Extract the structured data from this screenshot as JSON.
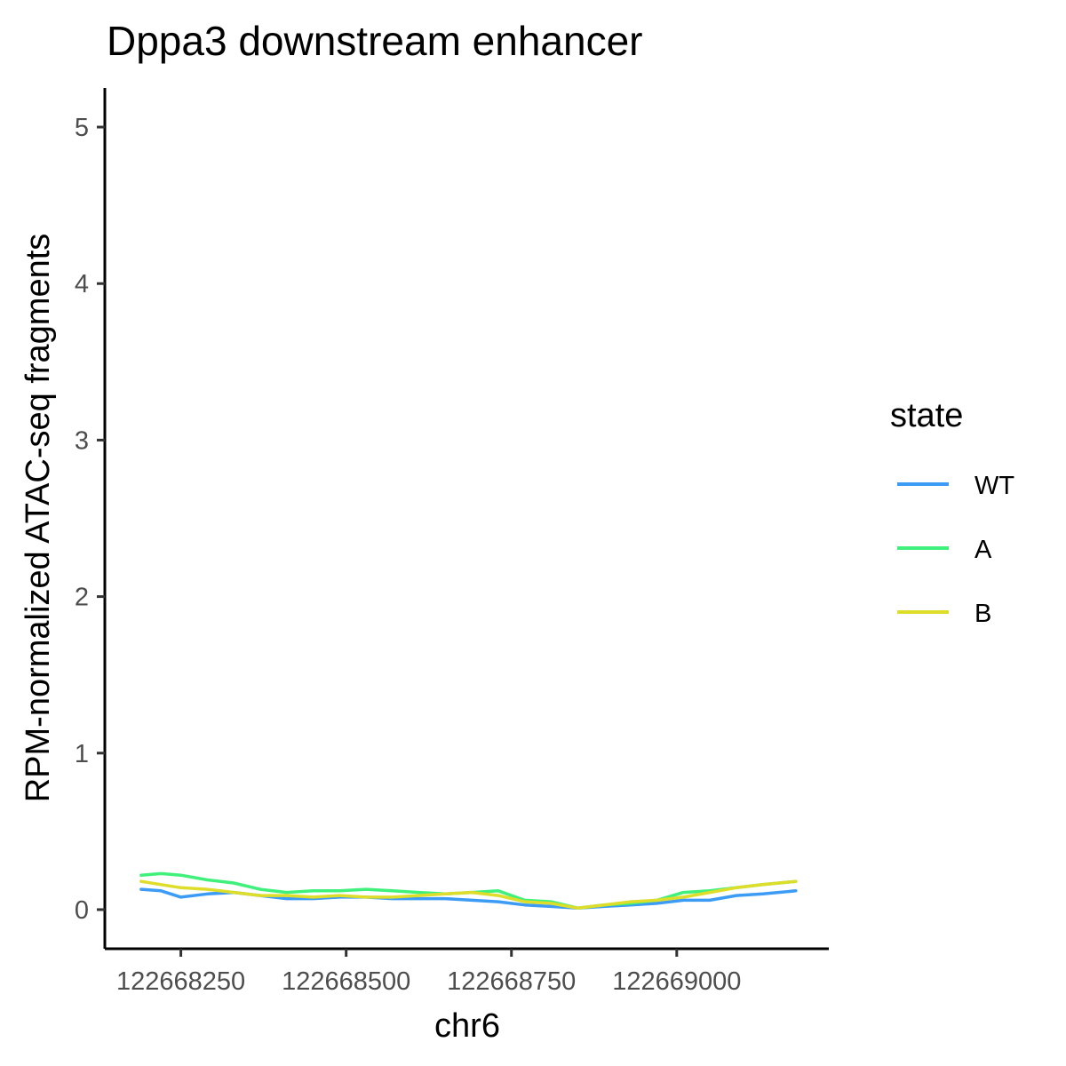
{
  "chart_data": {
    "type": "line",
    "title": "Dppa3 downstream enhancer",
    "xlabel": "chr6",
    "ylabel": "RPM-normalized ATAC-seq fragments",
    "xlim": [
      122668135,
      122669230
    ],
    "ylim": [
      -0.25,
      5.25
    ],
    "x_ticks": [
      122668250,
      122668500,
      122668750,
      122669000
    ],
    "x_tick_labels": [
      "122668250",
      "122668500",
      "122668750",
      "122669000"
    ],
    "y_ticks": [
      0,
      1,
      2,
      3,
      4,
      5
    ],
    "y_tick_labels": [
      "0",
      "1",
      "2",
      "3",
      "4",
      "5"
    ],
    "grid": false,
    "legend": {
      "title": "state",
      "position": "right"
    },
    "x": [
      122668190,
      122668220,
      122668250,
      122668290,
      122668330,
      122668370,
      122668410,
      122668450,
      122668490,
      122668530,
      122668570,
      122668610,
      122668650,
      122668690,
      122668730,
      122668770,
      122668810,
      122668850,
      122668890,
      122668930,
      122668970,
      122669010,
      122669050,
      122669090,
      122669130,
      122669180
    ],
    "series": [
      {
        "name": "WT",
        "color": "#3c9cf5",
        "values": [
          0.13,
          0.12,
          0.08,
          0.1,
          0.11,
          0.09,
          0.07,
          0.07,
          0.08,
          0.08,
          0.07,
          0.07,
          0.07,
          0.06,
          0.05,
          0.03,
          0.02,
          0.01,
          0.02,
          0.03,
          0.04,
          0.06,
          0.06,
          0.09,
          0.1,
          0.12
        ]
      },
      {
        "name": "A",
        "color": "#3ff07a",
        "values": [
          0.22,
          0.23,
          0.22,
          0.19,
          0.17,
          0.13,
          0.11,
          0.12,
          0.12,
          0.13,
          0.12,
          0.11,
          0.1,
          0.11,
          0.12,
          0.06,
          0.05,
          0.01,
          0.03,
          0.04,
          0.06,
          0.11,
          0.12,
          0.14,
          0.16,
          0.18
        ]
      },
      {
        "name": "B",
        "color": "#dddd2a",
        "values": [
          0.18,
          0.16,
          0.14,
          0.13,
          0.11,
          0.09,
          0.09,
          0.08,
          0.09,
          0.08,
          0.08,
          0.09,
          0.1,
          0.11,
          0.09,
          0.05,
          0.04,
          0.01,
          0.03,
          0.05,
          0.06,
          0.08,
          0.11,
          0.14,
          0.16,
          0.18
        ]
      }
    ]
  }
}
